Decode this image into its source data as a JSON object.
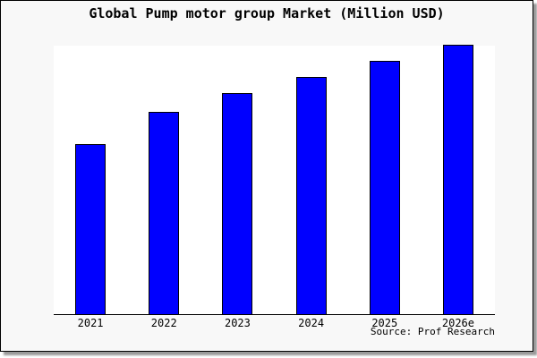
{
  "title": "Global Pump motor group Market (Million USD)",
  "source": "Source: Prof Research",
  "colors": {
    "bar_fill": "#0000ff",
    "bar_border": "#000000",
    "panel_bg": "#f8f8f8",
    "plot_bg": "#ffffff",
    "axis": "#000000",
    "text": "#000000"
  },
  "chart_data": {
    "type": "bar",
    "title": "Global Pump motor group Market (Million USD)",
    "categories": [
      "2021",
      "2022",
      "2023",
      "2024",
      "2025",
      "2026e"
    ],
    "values": [
      63,
      75,
      82,
      88,
      94,
      100
    ],
    "ylim": [
      0,
      100
    ],
    "xlabel": "",
    "ylabel": "",
    "y_axis_labels_visible": false,
    "gridlines": false,
    "legend": false,
    "note": "No y-axis tick labels are shown in the image; values are estimated bar heights relative to the tallest (2026e) bar = 100."
  }
}
